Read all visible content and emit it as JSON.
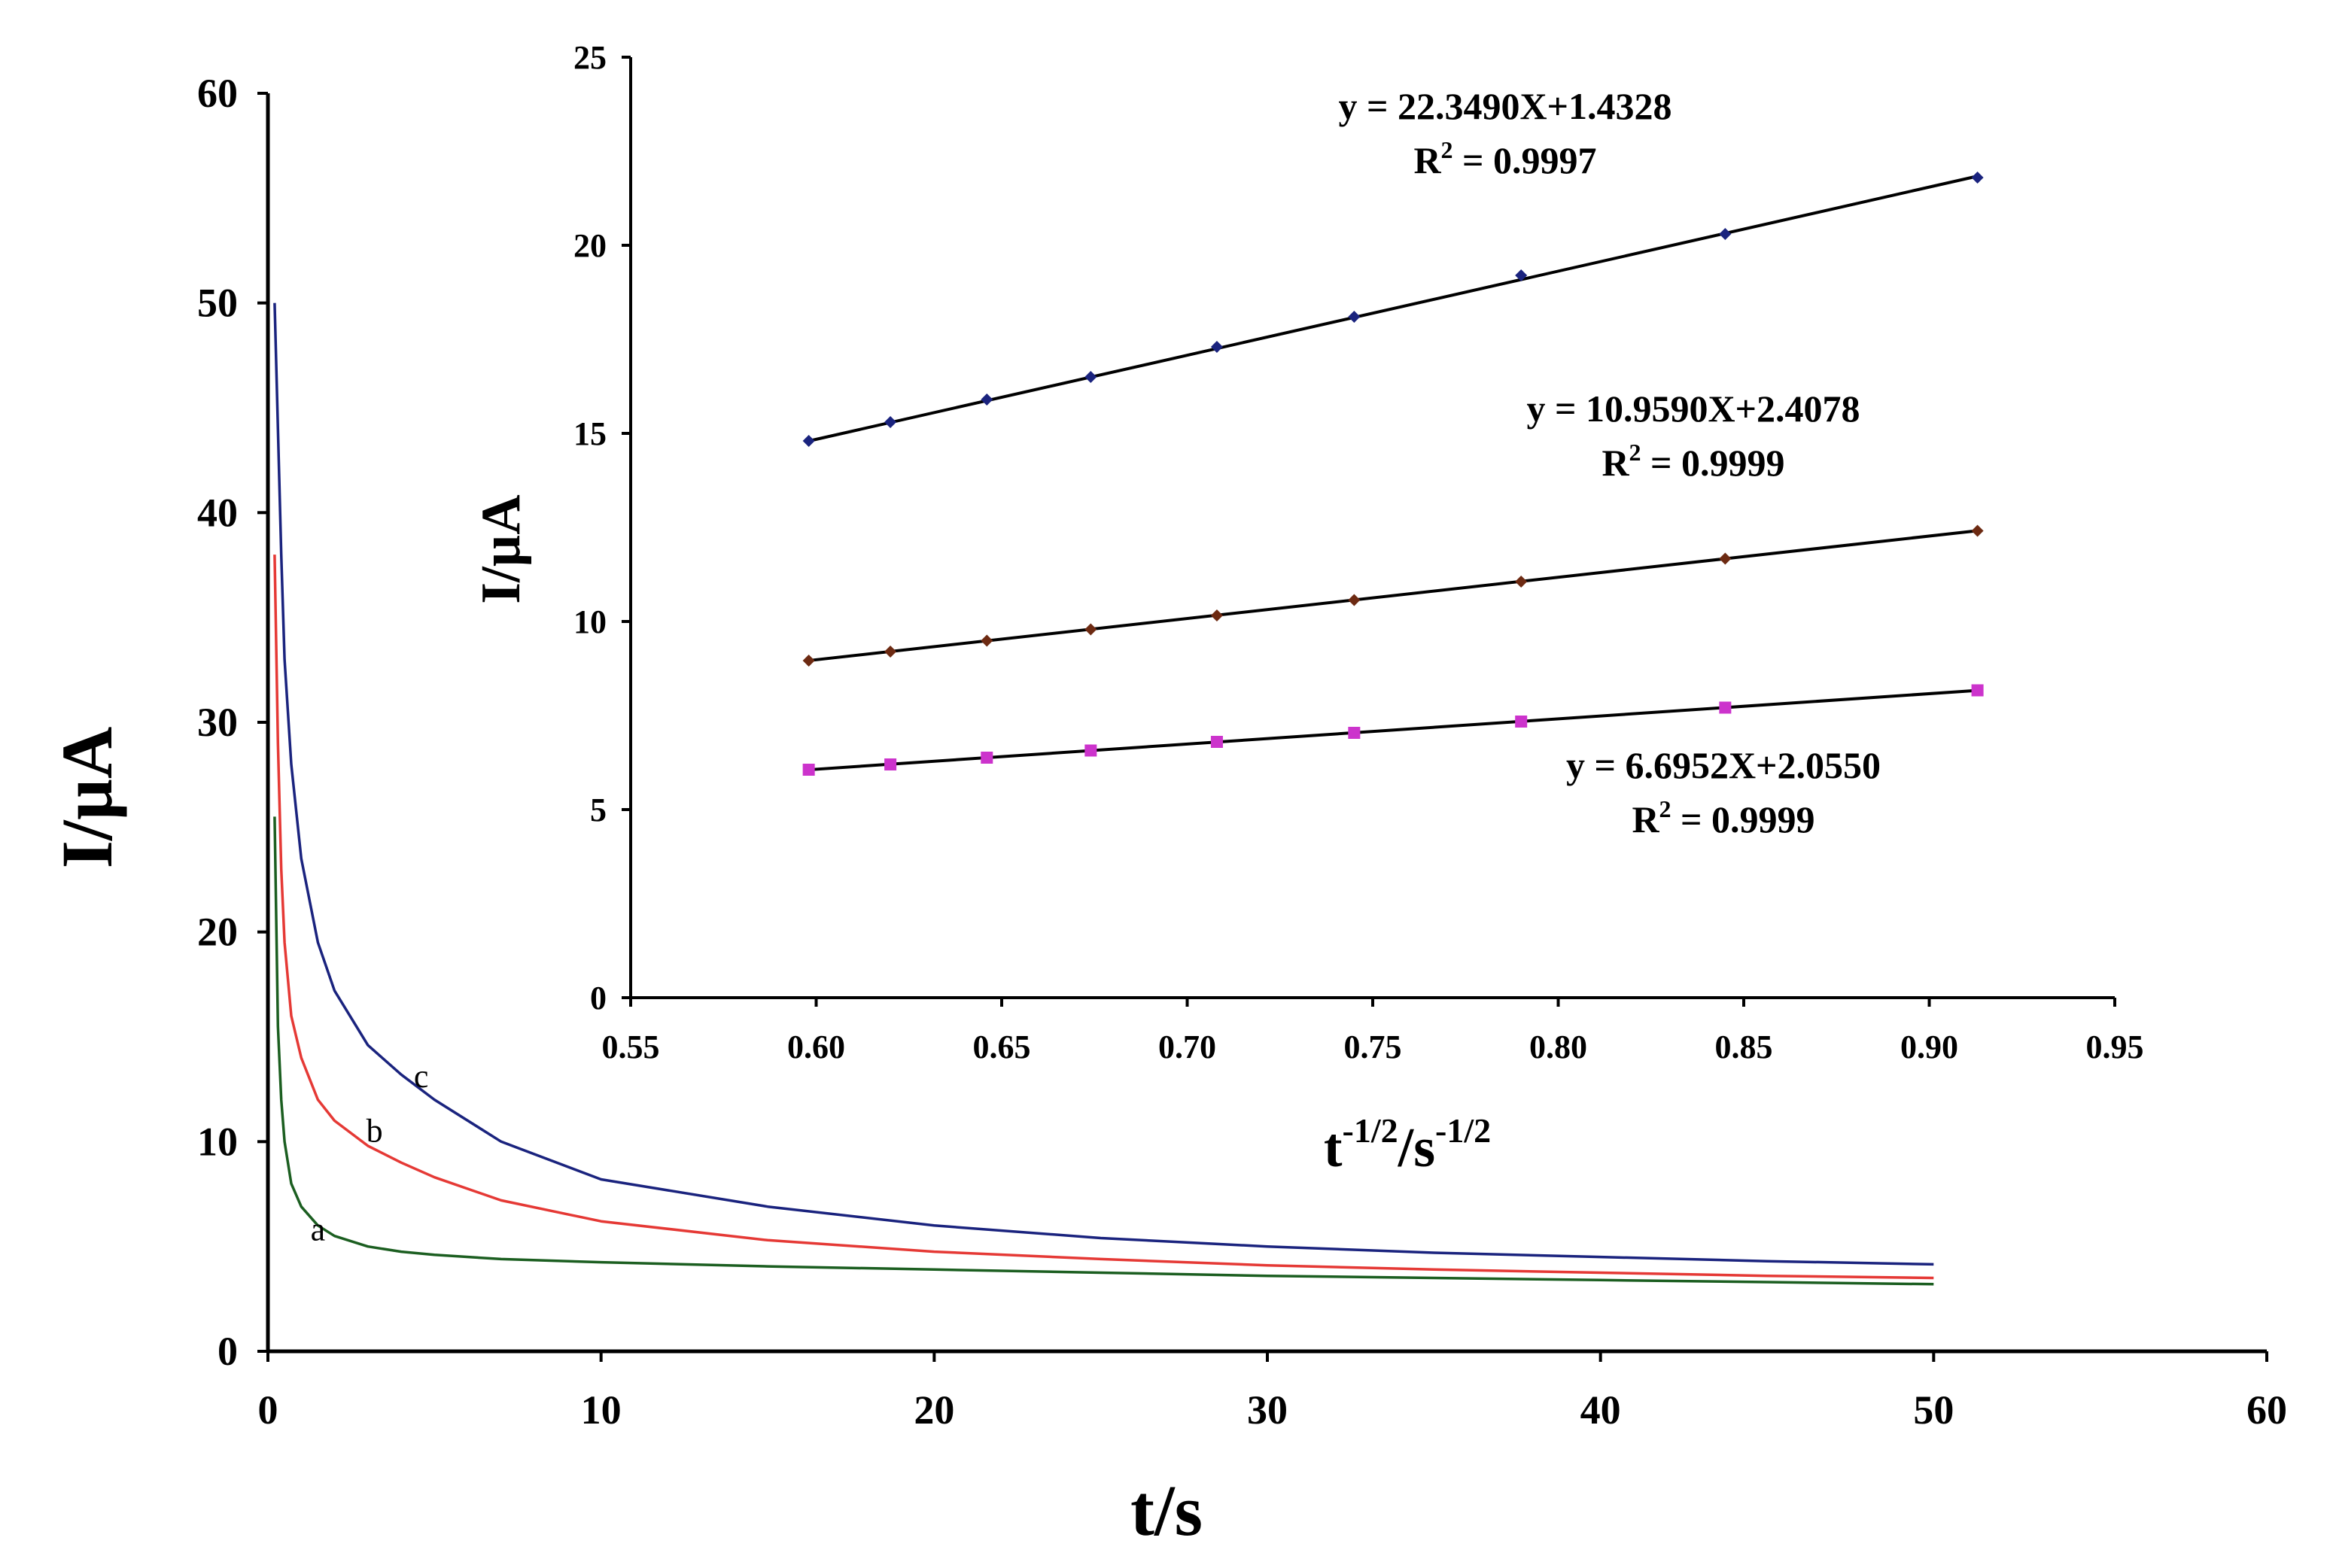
{
  "chart_data": [
    {
      "type": "line",
      "title": "",
      "xlabel": "t/s",
      "ylabel": "I/µA",
      "xlim": [
        0,
        60
      ],
      "ylim": [
        0,
        60
      ],
      "xticks": [
        0,
        10,
        20,
        30,
        40,
        50,
        60
      ],
      "yticks": [
        0,
        10,
        20,
        30,
        40,
        50,
        60
      ],
      "grid": false,
      "series": [
        {
          "name": "a",
          "color": "#1b5e20",
          "x": [
            0.2,
            0.3,
            0.4,
            0.5,
            0.7,
            1,
            1.5,
            2,
            3,
            4,
            5,
            7,
            10,
            15,
            20,
            25,
            30,
            35,
            40,
            45,
            50
          ],
          "y": [
            25.5,
            15.5,
            12.0,
            10.0,
            8.0,
            6.9,
            6.0,
            5.5,
            5.0,
            4.75,
            4.6,
            4.4,
            4.25,
            4.05,
            3.9,
            3.75,
            3.6,
            3.5,
            3.4,
            3.3,
            3.2
          ]
        },
        {
          "name": "b",
          "color": "#e53935",
          "x": [
            0.2,
            0.3,
            0.4,
            0.5,
            0.7,
            1,
            1.5,
            2,
            3,
            4,
            5,
            7,
            10,
            15,
            20,
            25,
            30,
            35,
            40,
            45,
            50
          ],
          "y": [
            38.0,
            29.0,
            23.0,
            19.5,
            16.0,
            14.0,
            12.0,
            11.0,
            9.8,
            9.0,
            8.3,
            7.2,
            6.2,
            5.3,
            4.75,
            4.4,
            4.1,
            3.9,
            3.75,
            3.6,
            3.5
          ]
        },
        {
          "name": "c",
          "color": "#1a237e",
          "x": [
            0.2,
            0.3,
            0.4,
            0.5,
            0.7,
            1,
            1.5,
            2,
            3,
            4,
            5,
            7,
            10,
            15,
            20,
            25,
            30,
            35,
            40,
            45,
            50
          ],
          "y": [
            50.0,
            44.0,
            38.0,
            33.0,
            28.0,
            23.5,
            19.5,
            17.2,
            14.6,
            13.2,
            12.0,
            10.0,
            8.2,
            6.9,
            6.0,
            5.4,
            5.0,
            4.7,
            4.5,
            4.3,
            4.15
          ]
        }
      ],
      "curve_labels": [
        {
          "text": "a",
          "x": 1.5,
          "y": 5.3
        },
        {
          "text": "b",
          "x": 3.2,
          "y": 10.0
        },
        {
          "text": "c",
          "x": 4.6,
          "y": 12.6
        }
      ]
    },
    {
      "type": "scatter",
      "title": "",
      "xlabel_base": "t",
      "xlabel_sup1": "-1/2",
      "xlabel_mid": "/s",
      "xlabel_sup2": "-1/2",
      "ylabel": "I/µA",
      "xlim": [
        0.55,
        0.95
      ],
      "ylim": [
        0,
        25
      ],
      "xticks": [
        "0.55",
        "0.60",
        "0.65",
        "0.70",
        "0.75",
        "0.80",
        "0.85",
        "0.90",
        "0.95"
      ],
      "yticks": [
        "0",
        "5",
        "10",
        "15",
        "20",
        "25"
      ],
      "grid": false,
      "x": [
        0.598,
        0.62,
        0.646,
        0.674,
        0.708,
        0.745,
        0.79,
        0.845,
        0.913
      ],
      "series": [
        {
          "name": "series-top",
          "color": "#1a237e",
          "marker": "diamond",
          "y": [
            14.8,
            15.3,
            15.9,
            16.5,
            17.3,
            18.1,
            19.2,
            20.3,
            21.8
          ],
          "fit": {
            "slope": 22.349,
            "intercept": 1.4328
          },
          "equation": "y = 22.3490X+1.4328",
          "r2_prefix": "R",
          "r2_sup": "2",
          "r2_value": " = 0.9997"
        },
        {
          "name": "series-middle",
          "color": "#6d2a12",
          "marker": "diamond",
          "y": [
            8.96,
            9.2,
            9.49,
            9.79,
            10.16,
            10.57,
            11.06,
            11.67,
            12.41
          ],
          "fit": {
            "slope": 10.959,
            "intercept": 2.4078
          },
          "equation": "y = 10.9590X+2.4078",
          "r2_prefix": "R",
          "r2_sup": "2",
          "r2_value": " = 0.9999"
        },
        {
          "name": "series-bottom",
          "color": "#cc33cc",
          "marker": "square",
          "y": [
            6.06,
            6.2,
            6.38,
            6.57,
            6.8,
            7.04,
            7.34,
            7.71,
            8.17
          ],
          "fit": {
            "slope": 6.6952,
            "intercept": 2.055
          },
          "equation": "y = 6.6952X+2.0550",
          "r2_prefix": "R",
          "r2_sup": "2",
          "r2_value": " = 0.9999"
        }
      ]
    }
  ]
}
